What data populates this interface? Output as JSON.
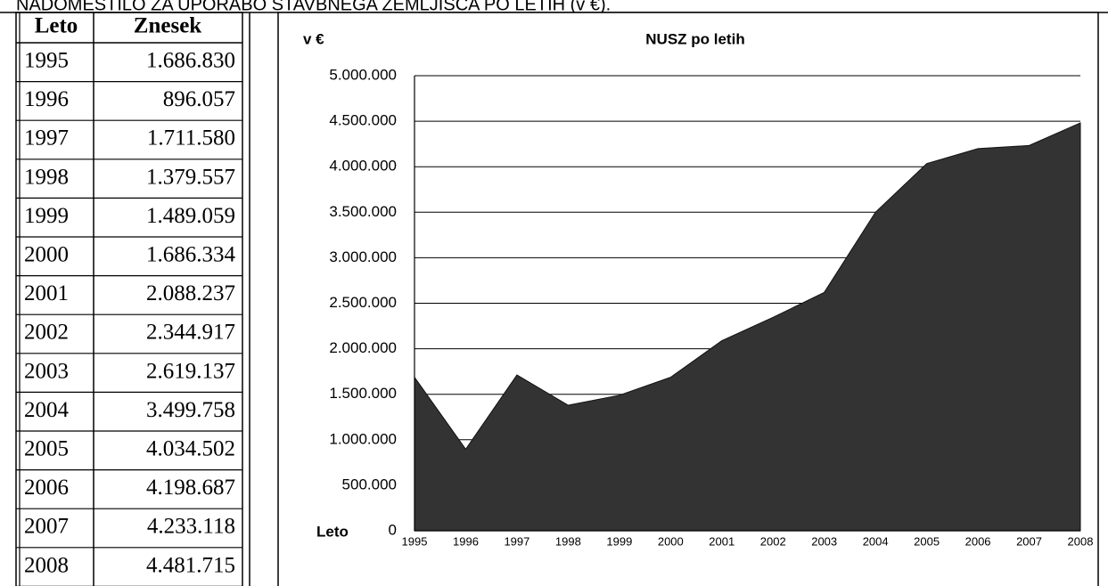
{
  "heading": "NADOMESTILO ZA UPORABO STAVBNEGA ZEMLJIŠČA PO LETIH (v €).",
  "table": {
    "header": [
      "Leto",
      "Znesek"
    ],
    "rows": [
      [
        "1995",
        "1.686.830"
      ],
      [
        "1996",
        "896.057"
      ],
      [
        "1997",
        "1.711.580"
      ],
      [
        "1998",
        "1.379.557"
      ],
      [
        "1999",
        "1.489.059"
      ],
      [
        "2000",
        "1.686.334"
      ],
      [
        "2001",
        "2.088.237"
      ],
      [
        "2002",
        "2.344.917"
      ],
      [
        "2003",
        "2.619.137"
      ],
      [
        "2004",
        "3.499.758"
      ],
      [
        "2005",
        "4.034.502"
      ],
      [
        "2006",
        "4.198.687"
      ],
      [
        "2007",
        "4.233.118"
      ],
      [
        "2008",
        "4.481.715"
      ]
    ]
  },
  "chart_data": {
    "type": "area",
    "title": "NUSZ po letih",
    "y_label": "v €",
    "x_label": "Leto",
    "categories": [
      "1995",
      "1996",
      "1997",
      "1998",
      "1999",
      "2000",
      "2001",
      "2002",
      "2003",
      "2004",
      "2005",
      "2006",
      "2007",
      "2008"
    ],
    "values": [
      1686830,
      896057,
      1711580,
      1379557,
      1489059,
      1686334,
      2088237,
      2344917,
      2619137,
      3499758,
      4034502,
      4198687,
      4233118,
      4481715
    ],
    "color": "#333333",
    "ylim": [
      0,
      5000000
    ],
    "yticks": [
      0,
      {
        "value": 500000,
        "label": "500.000"
      },
      {
        "value": 1000000,
        "label": "1.000.000"
      },
      {
        "value": 1500000,
        "label": "1.500.000"
      },
      {
        "value": 2000000,
        "label": "2.000.000"
      },
      {
        "value": 2500000,
        "label": "2.500.000"
      },
      {
        "value": 3000000,
        "label": "3.000.000"
      },
      {
        "value": 3500000,
        "label": "3.500.000"
      },
      {
        "value": 4000000,
        "label": "4.000.000"
      },
      {
        "value": 4500000,
        "label": "4.500.000"
      },
      {
        "value": 5000000,
        "label": "5.000.000"
      }
    ],
    "grid": true
  }
}
